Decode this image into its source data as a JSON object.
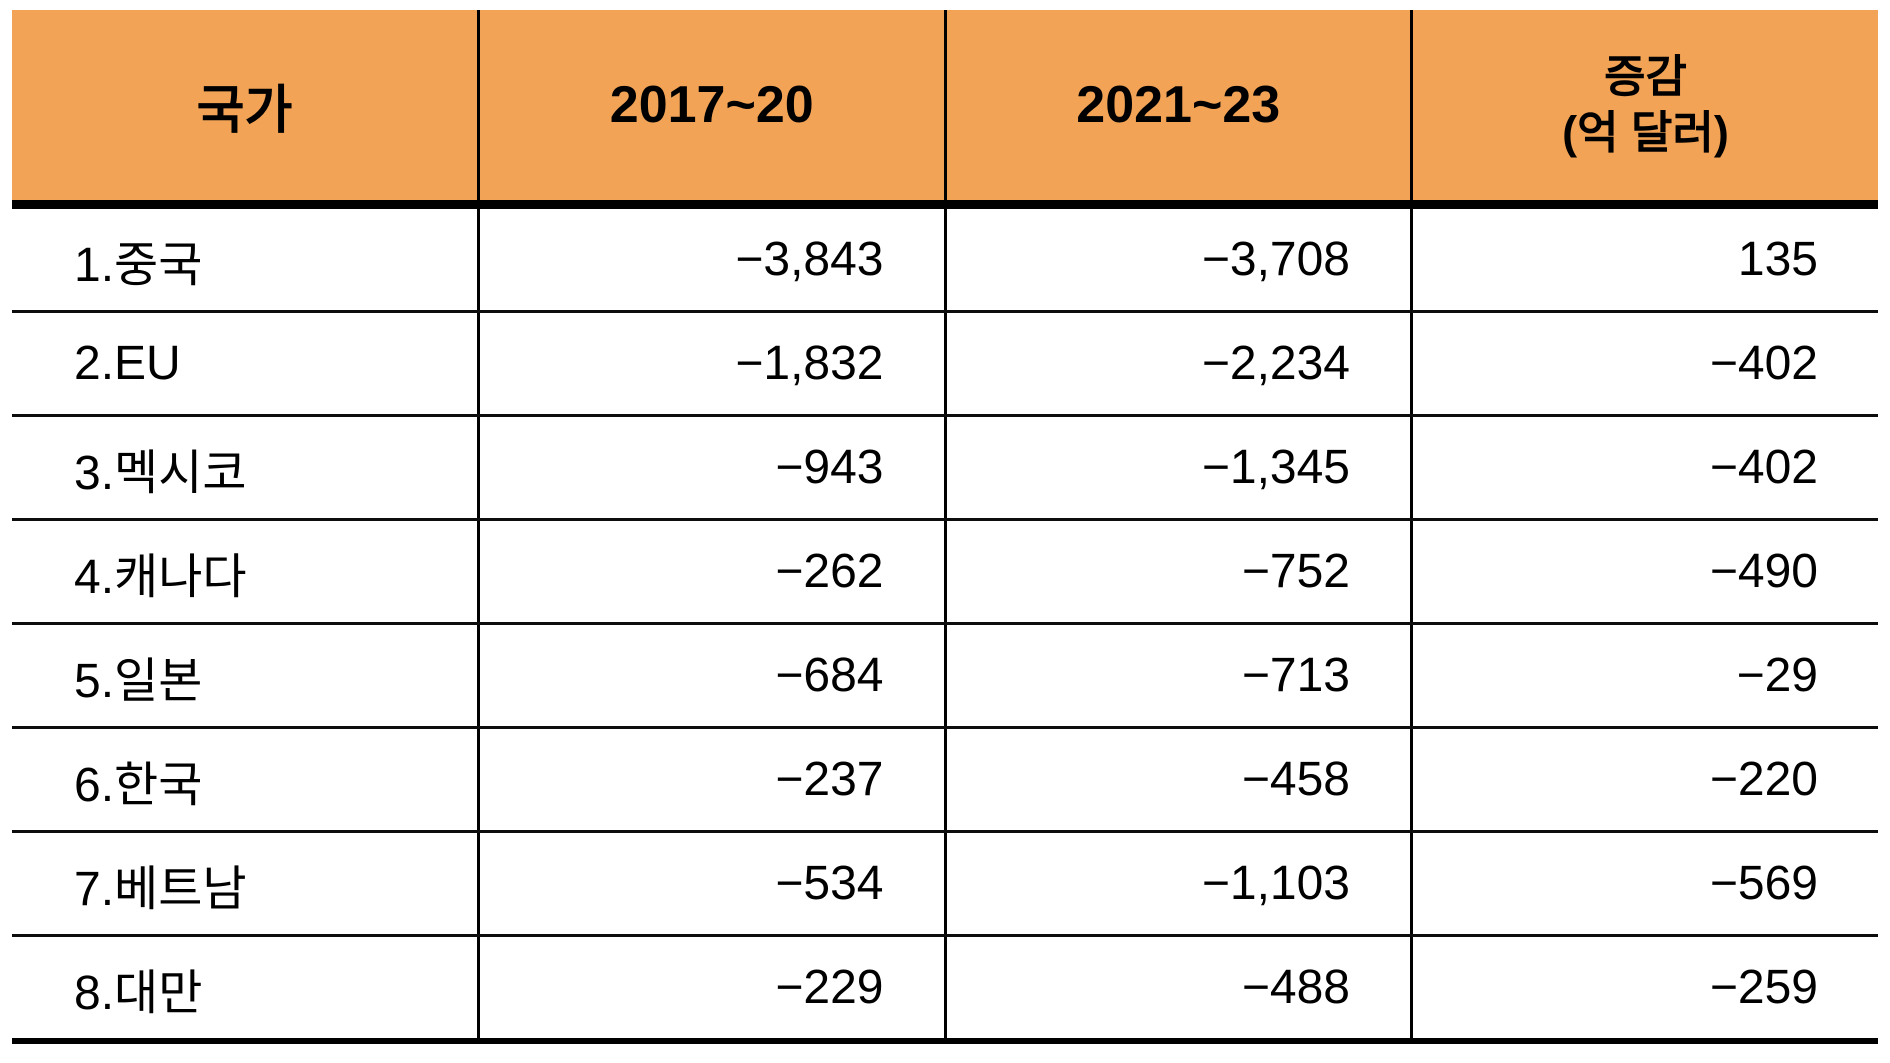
{
  "colors": {
    "header_bg": "#F2A356",
    "border": "#000000",
    "text": "#000000",
    "row_bg": "#FFFFFF"
  },
  "chart_data": {
    "type": "table",
    "unit_note": "(억 달러)",
    "columns": [
      {
        "label": "국가"
      },
      {
        "label": "2017~20"
      },
      {
        "label": "2021~23"
      },
      {
        "label": "증감",
        "label_sub": "(억 달러)"
      }
    ],
    "rows": [
      [
        "1.중국",
        "−3,843",
        "−3,708",
        "135"
      ],
      [
        "2.EU",
        "−1,832",
        "−2,234",
        "−402"
      ],
      [
        "3.멕시코",
        "−943",
        "−1,345",
        "−402"
      ],
      [
        "4.캐나다",
        "−262",
        "−752",
        "−490"
      ],
      [
        "5.일본",
        "−684",
        "−713",
        "−29"
      ],
      [
        "6.한국",
        "−237",
        "−458",
        "−220"
      ],
      [
        "7.베트남",
        "−534",
        "−1,103",
        "−569"
      ],
      [
        "8.대만",
        "−229",
        "−488",
        "−259"
      ]
    ],
    "rows_numeric": [
      {
        "country": "중국",
        "p2017_20": -3843,
        "p2021_23": -3708,
        "change": 135
      },
      {
        "country": "EU",
        "p2017_20": -1832,
        "p2021_23": -2234,
        "change": -402
      },
      {
        "country": "멕시코",
        "p2017_20": -943,
        "p2021_23": -1345,
        "change": -402
      },
      {
        "country": "캐나다",
        "p2017_20": -262,
        "p2021_23": -752,
        "change": -490
      },
      {
        "country": "일본",
        "p2017_20": -684,
        "p2021_23": -713,
        "change": -29
      },
      {
        "country": "한국",
        "p2017_20": -237,
        "p2021_23": -458,
        "change": -220
      },
      {
        "country": "베트남",
        "p2017_20": -534,
        "p2021_23": -1103,
        "change": -569
      },
      {
        "country": "대만",
        "p2017_20": -229,
        "p2021_23": -488,
        "change": -259
      }
    ]
  }
}
